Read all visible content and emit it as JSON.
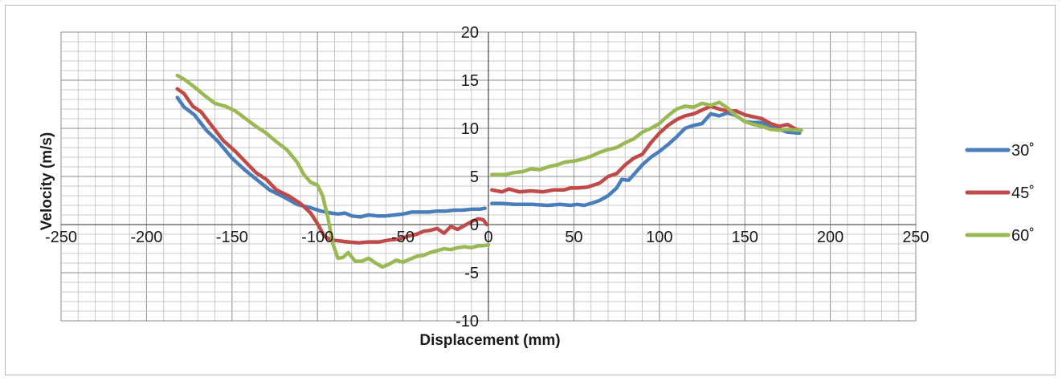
{
  "chart_data": {
    "type": "line",
    "xlabel": "Displacement (mm)",
    "ylabel": "Velocity (m/s)",
    "xlim": [
      -250,
      250
    ],
    "ylim": [
      -10,
      20
    ],
    "x_ticks": [
      -250,
      -200,
      -150,
      -100,
      -50,
      0,
      50,
      100,
      150,
      200,
      250
    ],
    "y_ticks": [
      -10,
      -5,
      0,
      5,
      10,
      15,
      20
    ],
    "grid": "major and minor",
    "legend_position": "right",
    "series": [
      {
        "name": "30˚",
        "color": "#4a7ebb",
        "segments": [
          [
            [
              -182,
              13.2
            ],
            [
              -178,
              12.2
            ],
            [
              -172,
              11.4
            ],
            [
              -165,
              9.8
            ],
            [
              -158,
              8.6
            ],
            [
              -150,
              6.9
            ],
            [
              -142,
              5.6
            ],
            [
              -135,
              4.6
            ],
            [
              -128,
              3.6
            ],
            [
              -120,
              2.9
            ],
            [
              -112,
              2.1
            ],
            [
              -105,
              1.8
            ],
            [
              -98,
              1.4
            ],
            [
              -92,
              1.2
            ],
            [
              -88,
              1.1
            ],
            [
              -84,
              1.2
            ],
            [
              -80,
              0.9
            ],
            [
              -75,
              0.8
            ],
            [
              -70,
              1.0
            ],
            [
              -65,
              0.9
            ],
            [
              -60,
              0.9
            ],
            [
              -55,
              1.0
            ],
            [
              -50,
              1.1
            ],
            [
              -45,
              1.3
            ],
            [
              -40,
              1.3
            ],
            [
              -35,
              1.3
            ],
            [
              -30,
              1.4
            ],
            [
              -25,
              1.4
            ],
            [
              -20,
              1.5
            ],
            [
              -15,
              1.5
            ],
            [
              -10,
              1.6
            ],
            [
              -5,
              1.6
            ],
            [
              -2,
              1.7
            ]
          ],
          [
            [
              2,
              2.2
            ],
            [
              8,
              2.2
            ],
            [
              15,
              2.1
            ],
            [
              25,
              2.1
            ],
            [
              35,
              2.0
            ],
            [
              42,
              2.1
            ],
            [
              48,
              2.0
            ],
            [
              52,
              2.1
            ],
            [
              56,
              2.0
            ],
            [
              60,
              2.2
            ],
            [
              65,
              2.5
            ],
            [
              70,
              3.0
            ],
            [
              75,
              3.8
            ],
            [
              78,
              4.7
            ],
            [
              82,
              4.6
            ],
            [
              85,
              5.2
            ],
            [
              90,
              6.2
            ],
            [
              95,
              7.0
            ],
            [
              100,
              7.6
            ],
            [
              105,
              8.3
            ],
            [
              110,
              9.1
            ],
            [
              115,
              10.0
            ],
            [
              120,
              10.3
            ],
            [
              125,
              10.5
            ],
            [
              130,
              11.5
            ],
            [
              135,
              11.3
            ],
            [
              140,
              11.6
            ],
            [
              145,
              11.3
            ],
            [
              150,
              10.7
            ],
            [
              155,
              10.6
            ],
            [
              160,
              10.6
            ],
            [
              165,
              10.1
            ],
            [
              170,
              9.9
            ],
            [
              175,
              9.6
            ],
            [
              182,
              9.5
            ]
          ]
        ]
      },
      {
        "name": "45˚",
        "color": "#be4b48",
        "segments": [
          [
            [
              -182,
              14.1
            ],
            [
              -178,
              13.6
            ],
            [
              -173,
              12.3
            ],
            [
              -168,
              11.7
            ],
            [
              -162,
              10.3
            ],
            [
              -155,
              8.7
            ],
            [
              -148,
              7.6
            ],
            [
              -142,
              6.5
            ],
            [
              -136,
              5.4
            ],
            [
              -130,
              4.7
            ],
            [
              -124,
              3.6
            ],
            [
              -117,
              3.0
            ],
            [
              -110,
              2.2
            ],
            [
              -104,
              1.2
            ],
            [
              -100,
              0.1
            ],
            [
              -96,
              -1.2
            ],
            [
              -92,
              -1.6
            ],
            [
              -87,
              -1.7
            ],
            [
              -82,
              -1.8
            ],
            [
              -76,
              -1.9
            ],
            [
              -70,
              -1.8
            ],
            [
              -64,
              -1.8
            ],
            [
              -58,
              -1.6
            ],
            [
              -52,
              -1.5
            ],
            [
              -47,
              -1.2
            ],
            [
              -42,
              -1.0
            ],
            [
              -38,
              -0.7
            ],
            [
              -34,
              -0.6
            ],
            [
              -30,
              -0.4
            ],
            [
              -26,
              -0.9
            ],
            [
              -22,
              -0.2
            ],
            [
              -18,
              -0.5
            ],
            [
              -14,
              -0.1
            ],
            [
              -10,
              0.3
            ],
            [
              -6,
              0.6
            ],
            [
              -3,
              0.5
            ],
            [
              -1,
              0.0
            ]
          ],
          [
            [
              2,
              3.6
            ],
            [
              8,
              3.4
            ],
            [
              12,
              3.7
            ],
            [
              18,
              3.4
            ],
            [
              25,
              3.5
            ],
            [
              32,
              3.4
            ],
            [
              38,
              3.6
            ],
            [
              44,
              3.6
            ],
            [
              48,
              3.8
            ],
            [
              52,
              3.8
            ],
            [
              58,
              3.9
            ],
            [
              65,
              4.3
            ],
            [
              70,
              5.0
            ],
            [
              75,
              5.3
            ],
            [
              80,
              6.2
            ],
            [
              85,
              6.9
            ],
            [
              90,
              7.3
            ],
            [
              95,
              8.5
            ],
            [
              100,
              9.5
            ],
            [
              105,
              10.3
            ],
            [
              110,
              10.9
            ],
            [
              115,
              11.3
            ],
            [
              120,
              11.5
            ],
            [
              125,
              11.9
            ],
            [
              130,
              12.3
            ],
            [
              135,
              12.0
            ],
            [
              140,
              11.8
            ],
            [
              145,
              11.8
            ],
            [
              150,
              11.4
            ],
            [
              155,
              11.2
            ],
            [
              160,
              11.0
            ],
            [
              165,
              10.5
            ],
            [
              170,
              10.2
            ],
            [
              175,
              10.4
            ],
            [
              180,
              9.9
            ],
            [
              183,
              9.8
            ]
          ]
        ]
      },
      {
        "name": "60˚",
        "color": "#98b954",
        "segments": [
          [
            [
              -182,
              15.5
            ],
            [
              -178,
              15.1
            ],
            [
              -172,
              14.3
            ],
            [
              -166,
              13.4
            ],
            [
              -160,
              12.6
            ],
            [
              -154,
              12.3
            ],
            [
              -148,
              11.8
            ],
            [
              -142,
              11.0
            ],
            [
              -136,
              10.2
            ],
            [
              -130,
              9.5
            ],
            [
              -124,
              8.6
            ],
            [
              -118,
              7.8
            ],
            [
              -112,
              6.5
            ],
            [
              -108,
              5.2
            ],
            [
              -104,
              4.4
            ],
            [
              -100,
              4.1
            ],
            [
              -97,
              3.0
            ],
            [
              -94,
              0.8
            ],
            [
              -91,
              -2.0
            ],
            [
              -88,
              -3.5
            ],
            [
              -85,
              -3.4
            ],
            [
              -82,
              -2.9
            ],
            [
              -78,
              -3.8
            ],
            [
              -74,
              -3.8
            ],
            [
              -70,
              -3.5
            ],
            [
              -66,
              -4.0
            ],
            [
              -62,
              -4.4
            ],
            [
              -58,
              -4.1
            ],
            [
              -54,
              -3.7
            ],
            [
              -50,
              -3.9
            ],
            [
              -46,
              -3.6
            ],
            [
              -42,
              -3.3
            ],
            [
              -38,
              -3.2
            ],
            [
              -34,
              -2.9
            ],
            [
              -30,
              -2.7
            ],
            [
              -26,
              -2.5
            ],
            [
              -22,
              -2.6
            ],
            [
              -18,
              -2.4
            ],
            [
              -14,
              -2.3
            ],
            [
              -10,
              -2.4
            ],
            [
              -6,
              -2.2
            ],
            [
              -3,
              -2.2
            ],
            [
              0,
              -2.1
            ]
          ],
          [
            [
              2,
              5.2
            ],
            [
              10,
              5.2
            ],
            [
              15,
              5.4
            ],
            [
              20,
              5.5
            ],
            [
              25,
              5.8
            ],
            [
              30,
              5.7
            ],
            [
              35,
              6.0
            ],
            [
              40,
              6.2
            ],
            [
              45,
              6.5
            ],
            [
              50,
              6.6
            ],
            [
              55,
              6.8
            ],
            [
              60,
              7.1
            ],
            [
              65,
              7.5
            ],
            [
              70,
              7.8
            ],
            [
              75,
              8.0
            ],
            [
              80,
              8.5
            ],
            [
              85,
              8.9
            ],
            [
              90,
              9.6
            ],
            [
              95,
              10.0
            ],
            [
              100,
              10.5
            ],
            [
              105,
              11.3
            ],
            [
              110,
              12.0
            ],
            [
              115,
              12.3
            ],
            [
              120,
              12.2
            ],
            [
              125,
              12.6
            ],
            [
              130,
              12.4
            ],
            [
              135,
              12.7
            ],
            [
              140,
              12.1
            ],
            [
              145,
              11.3
            ],
            [
              150,
              10.7
            ],
            [
              155,
              10.4
            ],
            [
              160,
              10.2
            ],
            [
              165,
              9.9
            ],
            [
              170,
              9.8
            ],
            [
              175,
              9.9
            ],
            [
              180,
              9.8
            ],
            [
              183,
              9.8
            ]
          ]
        ]
      }
    ]
  }
}
